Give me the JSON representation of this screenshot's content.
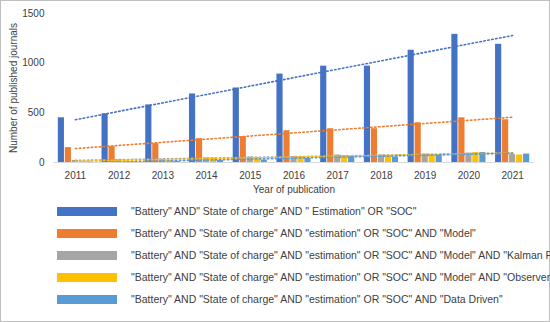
{
  "chart_data": {
    "type": "bar",
    "x_label": "Year of publication",
    "y_label": "Number of published journals",
    "categories": [
      "2011",
      "2012",
      "2013",
      "2014",
      "2015",
      "2016",
      "2017",
      "2018",
      "2019",
      "2020",
      "2021"
    ],
    "series": [
      {
        "name": "\"Battery\" AND\" State of charge\" AND \" Estimation\" OR \"SOC\"",
        "color": "#4472c4",
        "values": [
          450,
          490,
          580,
          690,
          750,
          890,
          970,
          970,
          1130,
          1290,
          1190
        ]
      },
      {
        "name": "\"Battery\" AND \"State of charge\" AND \"estimation\" OR \"SOC\" AND \"Model\"",
        "color": "#ed7d31",
        "values": [
          150,
          160,
          190,
          240,
          260,
          320,
          340,
          340,
          400,
          450,
          430
        ]
      },
      {
        "name": "\"Battery\" AND \"State of charge\" AND \"estimation\" OR \"SOC\" AND \"Model\" AND \"Kalman Filter\"",
        "color": "#a5a5a5",
        "values": [
          20,
          25,
          30,
          45,
          55,
          60,
          75,
          75,
          85,
          95,
          80
        ]
      },
      {
        "name": "\"Battery\" AND \"State of charge\" AND \"estimation\" OR \"SOC\" AND \"Model\" AND \"Observer\"",
        "color": "#ffc000",
        "values": [
          10,
          15,
          20,
          45,
          50,
          55,
          70,
          70,
          80,
          100,
          75
        ]
      },
      {
        "name": "\"Battery\" AND \"State of charge\" AND \"estimation\" OR \"SOC\" AND \"Data Driven\"",
        "color": "#5b9bd5",
        "values": [
          5,
          5,
          10,
          20,
          25,
          40,
          60,
          55,
          75,
          100,
          85
        ]
      }
    ],
    "ylim": [
      0,
      1500
    ],
    "yticks": [
      0,
      500,
      1000,
      1500
    ],
    "grid": false,
    "legend": "bottom"
  }
}
